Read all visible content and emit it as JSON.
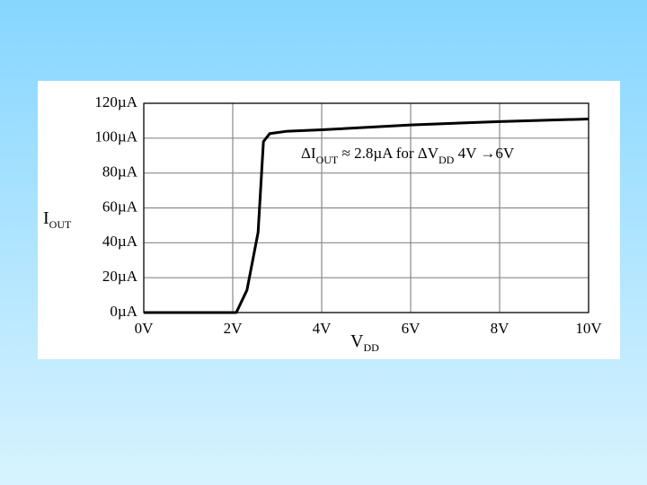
{
  "chart_data": {
    "type": "line",
    "x_label": [
      {
        "text": "V"
      },
      {
        "text": "DD",
        "sub": true
      }
    ],
    "y_label": [
      {
        "text": "I"
      },
      {
        "text": "OUT",
        "sub": true
      }
    ],
    "annotation": [
      {
        "text": "ΔI"
      },
      {
        "text": "OUT",
        "sub": true
      },
      {
        "text": " ≈ 2.8µA  for  ΔV"
      },
      {
        "text": "DD",
        "sub": true
      },
      {
        "text": " 4V →6V"
      }
    ],
    "series": [
      {
        "name": "IOUT",
        "color": "#000000",
        "x": [
          0,
          2.08,
          2.32,
          2.57,
          2.69,
          2.83,
          3.23,
          4,
          6,
          8,
          10
        ],
        "values": [
          0,
          0,
          12.9,
          46,
          98,
          102.6,
          104,
          104.8,
          107.6,
          109.5,
          111
        ]
      }
    ],
    "xlim": [
      0,
      10
    ],
    "ylim": [
      0,
      120
    ],
    "xticks": [
      {
        "value": 0,
        "label": "0V"
      },
      {
        "value": 2,
        "label": "2V"
      },
      {
        "value": 4,
        "label": "4V"
      },
      {
        "value": 6,
        "label": "6V"
      },
      {
        "value": 8,
        "label": "8V"
      },
      {
        "value": 10,
        "label": "10V"
      }
    ],
    "yticks": [
      {
        "value": 0,
        "label": "0µA"
      },
      {
        "value": 20,
        "label": "20µA"
      },
      {
        "value": 40,
        "label": "40µA"
      },
      {
        "value": 60,
        "label": "60µA"
      },
      {
        "value": 80,
        "label": "80µA"
      },
      {
        "value": 100,
        "label": "100µA"
      },
      {
        "value": 120,
        "label": "120µA"
      }
    ],
    "grid": true
  }
}
